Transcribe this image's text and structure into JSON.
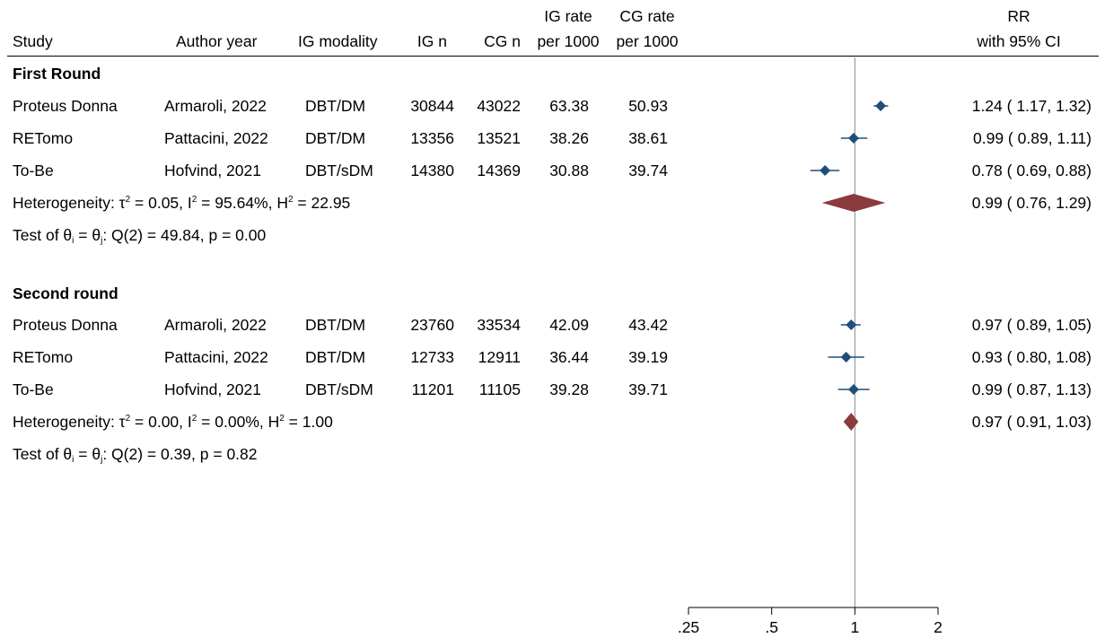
{
  "headers": {
    "study": "Study",
    "author_year": "Author year",
    "ig_modality": "IG modality",
    "ig_n": "IG n",
    "cg_n": "CG n",
    "ig_rate_1": "IG rate",
    "ig_rate_2": "per 1000",
    "cg_rate_1": "CG rate",
    "cg_rate_2": "per 1000",
    "rr_1": "RR",
    "rr_2": "with 95% CI"
  },
  "groups": [
    {
      "label": "First Round",
      "rows": [
        {
          "study": "Proteus Donna",
          "author": "Armaroli, 2022",
          "modality": "DBT/DM",
          "ig_n": "30844",
          "cg_n": "43022",
          "ig_rate": "63.38",
          "cg_rate": "50.93",
          "ci_text": "1.24 ( 1.17,  1.32)"
        },
        {
          "study": "RETomo",
          "author": "Pattacini, 2022",
          "modality": "DBT/DM",
          "ig_n": "13356",
          "cg_n": "13521",
          "ig_rate": "38.26",
          "cg_rate": "38.61",
          "ci_text": "0.99 ( 0.89,  1.11)"
        },
        {
          "study": "To-Be",
          "author": "Hofvind, 2021",
          "modality": "DBT/sDM",
          "ig_n": "14380",
          "cg_n": "14369",
          "ig_rate": "30.88",
          "cg_rate": "39.74",
          "ci_text": "0.78 ( 0.69,  0.88)"
        }
      ],
      "heterogeneity": {
        "prefix": "Heterogeneity: τ",
        "tau2": " = 0.05, I",
        "i2": " = 95.64%, H",
        "h2": " = 22.95",
        "ci_text": "0.99 ( 0.76,  1.29)"
      },
      "test": {
        "prefix": "Test of θ",
        "eq": " = θ",
        "rest": ": Q(2) = 49.84, p = 0.00"
      }
    },
    {
      "label": "Second round",
      "rows": [
        {
          "study": "Proteus Donna",
          "author": "Armaroli, 2022",
          "modality": "DBT/DM",
          "ig_n": "23760",
          "cg_n": "33534",
          "ig_rate": "42.09",
          "cg_rate": "43.42",
          "ci_text": "0.97 ( 0.89,  1.05)"
        },
        {
          "study": "RETomo",
          "author": "Pattacini, 2022",
          "modality": "DBT/DM",
          "ig_n": "12733",
          "cg_n": "12911",
          "ig_rate": "36.44",
          "cg_rate": "39.19",
          "ci_text": "0.93 ( 0.80,  1.08)"
        },
        {
          "study": "To-Be",
          "author": "Hofvind, 2021",
          "modality": "DBT/sDM",
          "ig_n": "11201",
          "cg_n": "11105",
          "ig_rate": "39.28",
          "cg_rate": "39.71",
          "ci_text": "0.99 ( 0.87,  1.13)"
        }
      ],
      "heterogeneity": {
        "prefix": "Heterogeneity: τ",
        "tau2": " = 0.00, I",
        "i2": " = 0.00%, H",
        "h2": " = 1.00",
        "ci_text": "0.97 ( 0.91,  1.03)"
      },
      "test": {
        "prefix": "Test of θ",
        "eq": " = θ",
        "rest": ": Q(2) = 0.39, p = 0.82"
      }
    }
  ],
  "sup2": "2",
  "sub_i": "i",
  "sub_j": "j",
  "colors": {
    "study_marker": "#1f4e79",
    "pooled_diamond": "#8b3a3e",
    "ref_line": "#888888"
  },
  "chart_data": {
    "type": "forest",
    "x_scale": "log",
    "ticks": [
      0.25,
      0.5,
      1,
      2
    ],
    "tick_labels": [
      ".25",
      ".5",
      "1",
      "2"
    ],
    "xlim": [
      0.25,
      2
    ],
    "reference_line": 1,
    "studies": [
      {
        "group": 0,
        "rr": 1.24,
        "lo": 1.17,
        "hi": 1.32
      },
      {
        "group": 0,
        "rr": 0.99,
        "lo": 0.89,
        "hi": 1.11
      },
      {
        "group": 0,
        "rr": 0.78,
        "lo": 0.69,
        "hi": 0.88
      },
      {
        "group": 1,
        "rr": 0.97,
        "lo": 0.89,
        "hi": 1.05
      },
      {
        "group": 1,
        "rr": 0.93,
        "lo": 0.8,
        "hi": 1.08
      },
      {
        "group": 1,
        "rr": 0.99,
        "lo": 0.87,
        "hi": 1.13
      }
    ],
    "pooled": [
      {
        "group": 0,
        "rr": 0.99,
        "lo": 0.76,
        "hi": 1.29
      },
      {
        "group": 1,
        "rr": 0.97,
        "lo": 0.91,
        "hi": 1.03
      }
    ]
  }
}
